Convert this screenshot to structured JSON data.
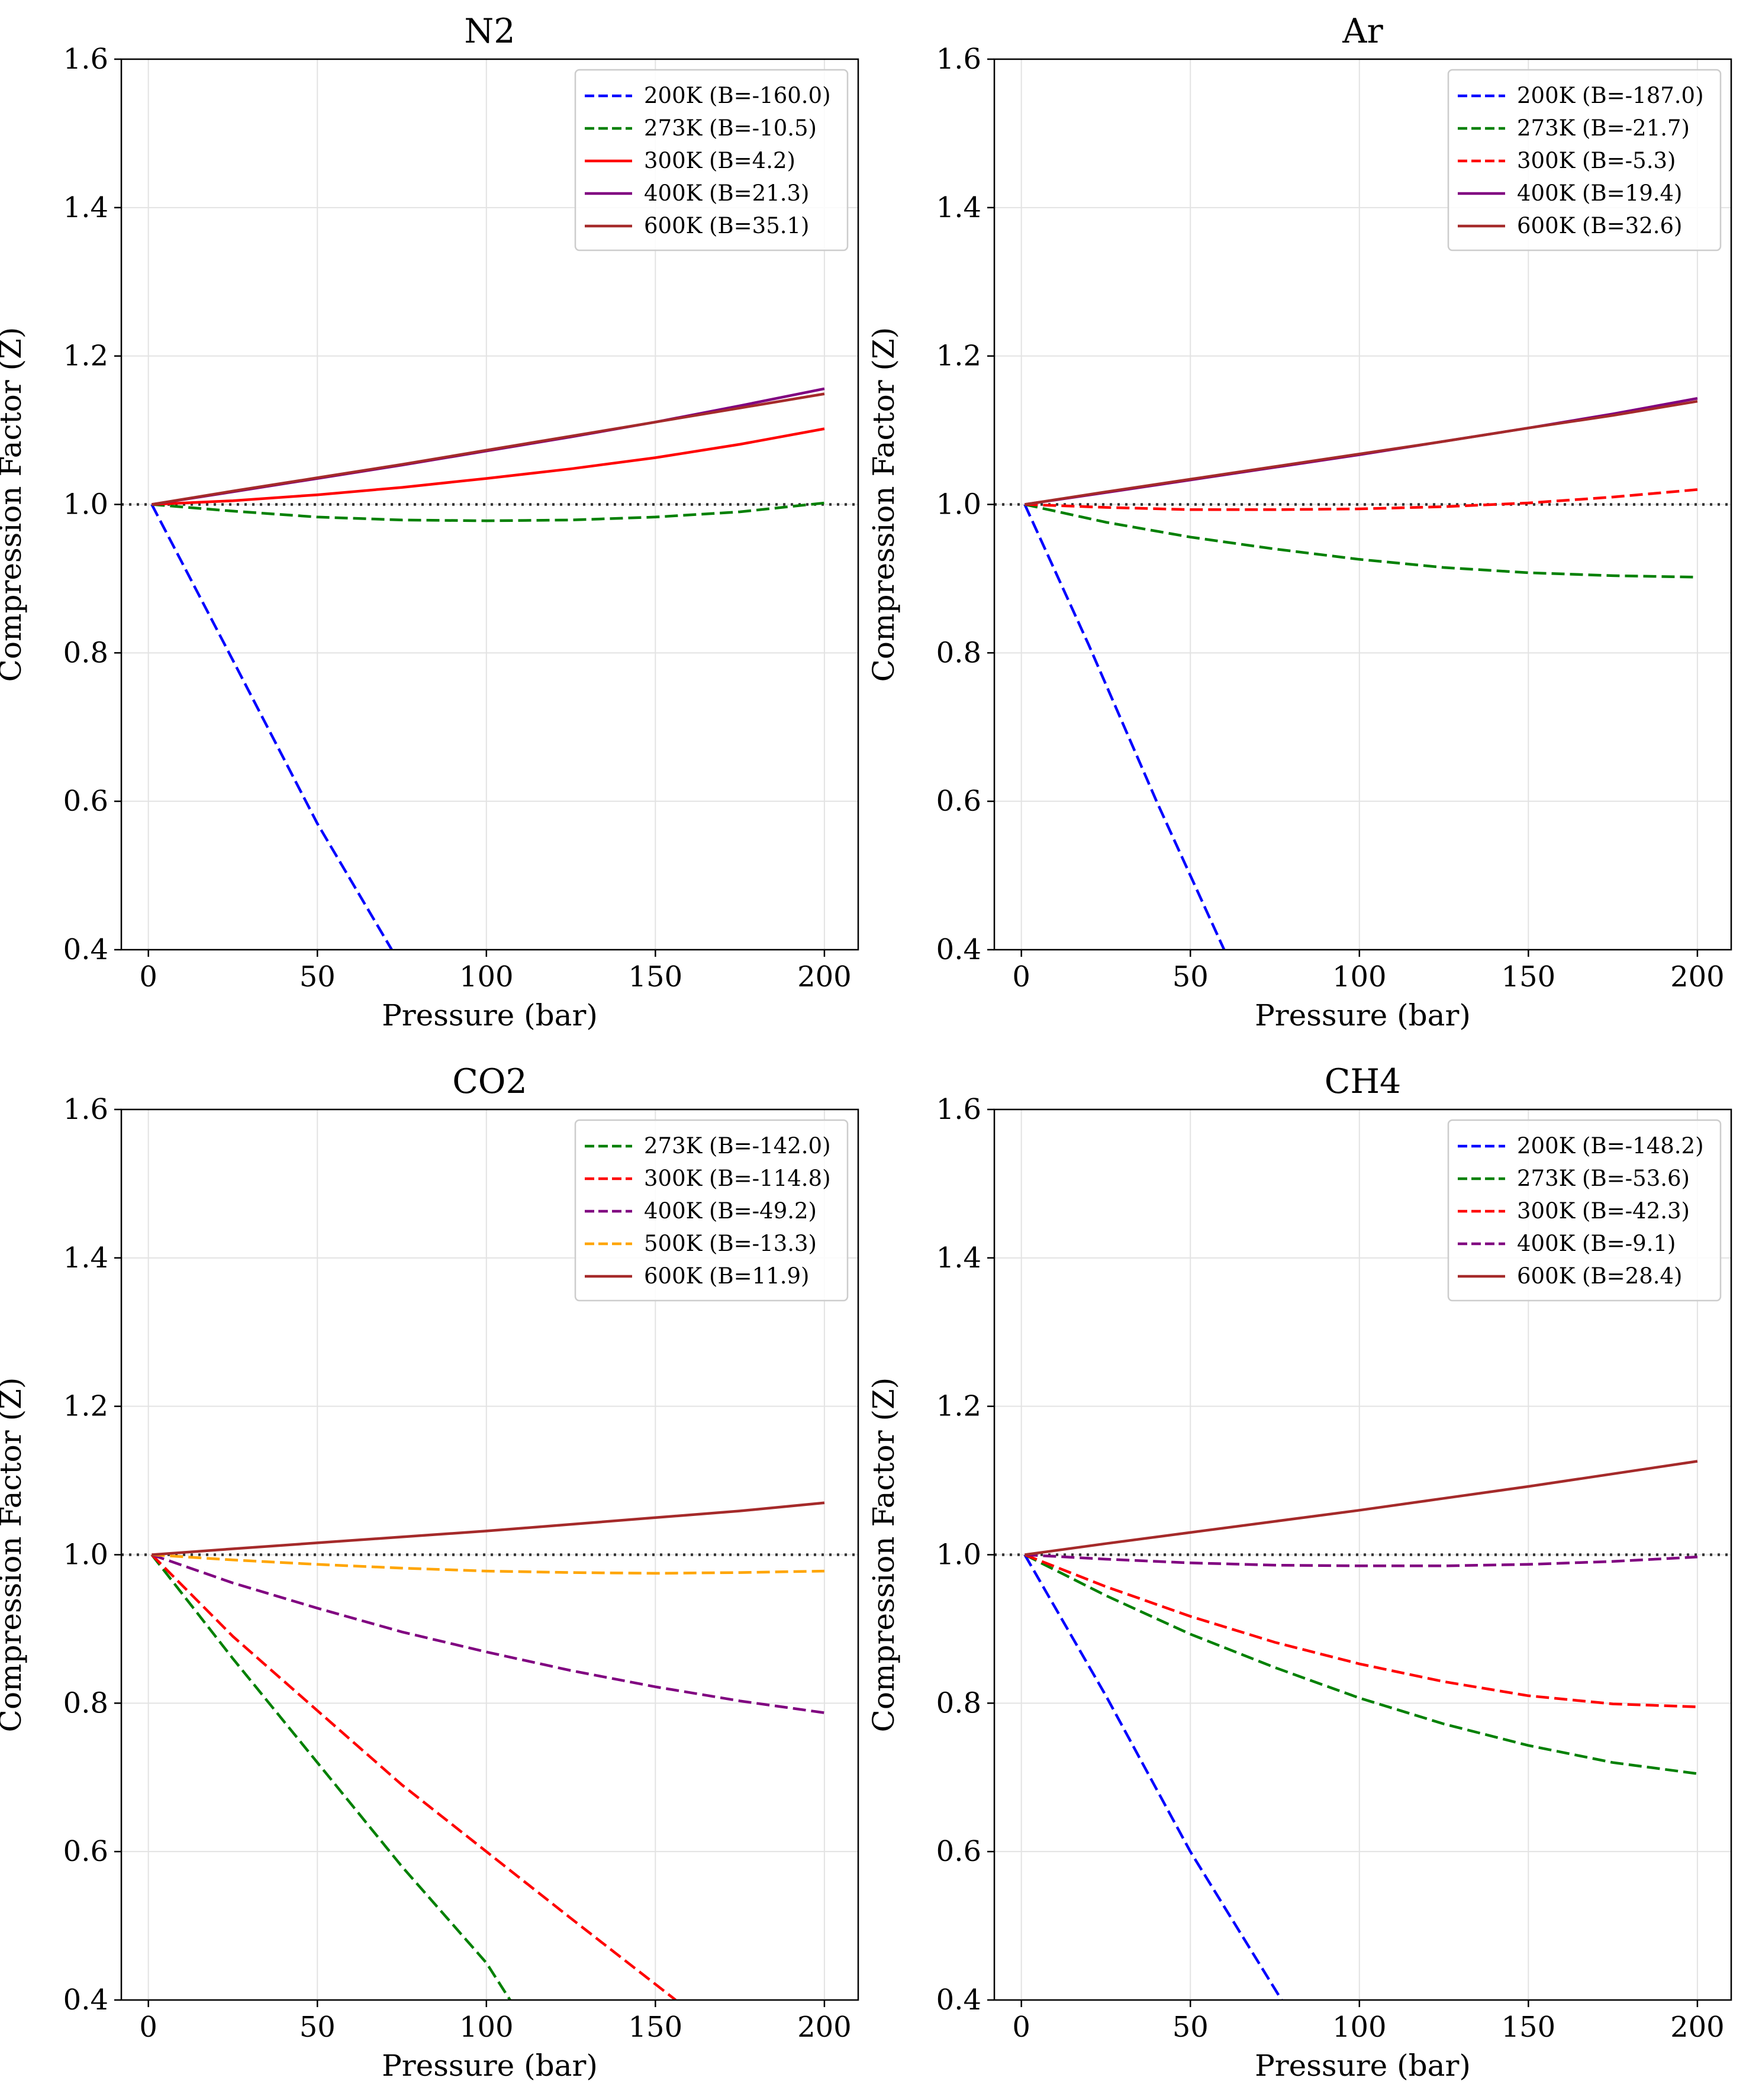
{
  "chart_data": [
    {
      "type": "line",
      "title": "N2",
      "xlabel": "Pressure (bar)",
      "ylabel": "Compression Factor (Z)",
      "xlim": [
        -8,
        210
      ],
      "ylim": [
        0.4,
        1.6
      ],
      "xticks": [
        0,
        50,
        100,
        150,
        200
      ],
      "yticks": [
        0.4,
        0.6,
        0.8,
        1.0,
        1.2,
        1.4,
        1.6
      ],
      "xtick_labels": [
        "0",
        "50",
        "100",
        "150",
        "200"
      ],
      "ytick_labels": [
        "0.4",
        "0.6",
        "0.8",
        "1.0",
        "1.2",
        "1.4",
        "1.6"
      ],
      "grid": true,
      "legend_position": "top-right",
      "reference_line": {
        "y": 1.0,
        "style": "dotted",
        "color": "#333333"
      },
      "series": [
        {
          "name": "200K (B=-160.0)",
          "color": "#0000ff",
          "dash": "dashed",
          "x": [
            1,
            25,
            50,
            72
          ],
          "values": [
            1.0,
            0.79,
            0.57,
            0.4
          ]
        },
        {
          "name": "273K (B=-10.5)",
          "color": "#008000",
          "dash": "dashed",
          "x": [
            1,
            25,
            50,
            75,
            100,
            125,
            150,
            175,
            200
          ],
          "values": [
            1.0,
            0.991,
            0.983,
            0.979,
            0.978,
            0.979,
            0.983,
            0.99,
            1.002
          ]
        },
        {
          "name": "300K (B=4.2)",
          "color": "#ff0000",
          "dash": "solid",
          "x": [
            1,
            25,
            50,
            75,
            100,
            125,
            150,
            175,
            200
          ],
          "values": [
            1.0,
            1.005,
            1.013,
            1.023,
            1.035,
            1.048,
            1.063,
            1.081,
            1.102
          ]
        },
        {
          "name": "400K (B=21.3)",
          "color": "#800080",
          "dash": "solid",
          "x": [
            1,
            25,
            50,
            75,
            100,
            125,
            150,
            175,
            200
          ],
          "values": [
            1.0,
            1.017,
            1.035,
            1.053,
            1.072,
            1.091,
            1.111,
            1.133,
            1.156
          ]
        },
        {
          "name": "600K (B=35.1)",
          "color": "#a52a2a",
          "dash": "solid",
          "x": [
            1,
            25,
            50,
            75,
            100,
            125,
            150,
            175,
            200
          ],
          "values": [
            1.0,
            1.018,
            1.036,
            1.054,
            1.073,
            1.092,
            1.111,
            1.13,
            1.149
          ]
        }
      ]
    },
    {
      "type": "line",
      "title": "Ar",
      "xlabel": "Pressure (bar)",
      "ylabel": "Compression Factor (Z)",
      "xlim": [
        -8,
        210
      ],
      "ylim": [
        0.4,
        1.6
      ],
      "xticks": [
        0,
        50,
        100,
        150,
        200
      ],
      "yticks": [
        0.4,
        0.6,
        0.8,
        1.0,
        1.2,
        1.4,
        1.6
      ],
      "xtick_labels": [
        "0",
        "50",
        "100",
        "150",
        "200"
      ],
      "ytick_labels": [
        "0.4",
        "0.6",
        "0.8",
        "1.0",
        "1.2",
        "1.4",
        "1.6"
      ],
      "grid": true,
      "legend_position": "top-right",
      "reference_line": {
        "y": 1.0,
        "style": "dotted",
        "color": "#333333"
      },
      "series": [
        {
          "name": "200K (B=-187.0)",
          "color": "#0000ff",
          "dash": "dashed",
          "x": [
            1,
            20,
            40,
            60
          ],
          "values": [
            1.0,
            0.81,
            0.6,
            0.4
          ]
        },
        {
          "name": "273K (B=-21.7)",
          "color": "#008000",
          "dash": "dashed",
          "x": [
            1,
            25,
            50,
            75,
            100,
            125,
            150,
            175,
            200
          ],
          "values": [
            1.0,
            0.976,
            0.956,
            0.94,
            0.926,
            0.915,
            0.908,
            0.904,
            0.902
          ]
        },
        {
          "name": "300K (B=-5.3)",
          "color": "#ff0000",
          "dash": "dashed",
          "x": [
            1,
            25,
            50,
            75,
            100,
            125,
            150,
            175,
            200
          ],
          "values": [
            1.0,
            0.996,
            0.993,
            0.993,
            0.994,
            0.997,
            1.002,
            1.01,
            1.02
          ]
        },
        {
          "name": "400K (B=19.4)",
          "color": "#800080",
          "dash": "solid",
          "x": [
            1,
            25,
            50,
            75,
            100,
            125,
            150,
            175,
            200
          ],
          "values": [
            1.0,
            1.016,
            1.033,
            1.05,
            1.067,
            1.085,
            1.103,
            1.122,
            1.143
          ]
        },
        {
          "name": "600K (B=32.6)",
          "color": "#a52a2a",
          "dash": "solid",
          "x": [
            1,
            25,
            50,
            75,
            100,
            125,
            150,
            175,
            200
          ],
          "values": [
            1.0,
            1.017,
            1.034,
            1.051,
            1.068,
            1.085,
            1.103,
            1.12,
            1.139
          ]
        }
      ]
    },
    {
      "type": "line",
      "title": "CO2",
      "xlabel": "Pressure (bar)",
      "ylabel": "Compression Factor (Z)",
      "xlim": [
        -8,
        210
      ],
      "ylim": [
        0.4,
        1.6
      ],
      "xticks": [
        0,
        50,
        100,
        150,
        200
      ],
      "yticks": [
        0.4,
        0.6,
        0.8,
        1.0,
        1.2,
        1.4,
        1.6
      ],
      "xtick_labels": [
        "0",
        "50",
        "100",
        "150",
        "200"
      ],
      "ytick_labels": [
        "0.4",
        "0.6",
        "0.8",
        "1.0",
        "1.2",
        "1.4",
        "1.6"
      ],
      "grid": true,
      "legend_position": "top-right",
      "reference_line": {
        "y": 1.0,
        "style": "dotted",
        "color": "#333333"
      },
      "series": [
        {
          "name": "273K (B=-142.0)",
          "color": "#008000",
          "dash": "dashed",
          "x": [
            1,
            25,
            50,
            75,
            100,
            107
          ],
          "values": [
            1.0,
            0.86,
            0.72,
            0.58,
            0.45,
            0.4
          ]
        },
        {
          "name": "300K (B=-114.8)",
          "color": "#ff0000",
          "dash": "dashed",
          "x": [
            1,
            25,
            50,
            75,
            100,
            125,
            156
          ],
          "values": [
            1.0,
            0.89,
            0.79,
            0.69,
            0.6,
            0.51,
            0.4
          ]
        },
        {
          "name": "400K (B=-49.2)",
          "color": "#800080",
          "dash": "dashed",
          "x": [
            1,
            25,
            50,
            75,
            100,
            125,
            150,
            175,
            200
          ],
          "values": [
            1.0,
            0.962,
            0.928,
            0.896,
            0.869,
            0.844,
            0.822,
            0.803,
            0.787
          ]
        },
        {
          "name": "500K (B=-13.3)",
          "color": "#ffa500",
          "dash": "dashed",
          "x": [
            1,
            25,
            50,
            75,
            100,
            125,
            150,
            175,
            200
          ],
          "values": [
            1.0,
            0.993,
            0.987,
            0.982,
            0.978,
            0.976,
            0.975,
            0.976,
            0.978
          ]
        },
        {
          "name": "600K (B=11.9)",
          "color": "#a52a2a",
          "dash": "solid",
          "x": [
            1,
            25,
            50,
            75,
            100,
            125,
            150,
            175,
            200
          ],
          "values": [
            1.0,
            1.008,
            1.016,
            1.024,
            1.032,
            1.041,
            1.05,
            1.059,
            1.07
          ]
        }
      ]
    },
    {
      "type": "line",
      "title": "CH4",
      "xlabel": "Pressure (bar)",
      "ylabel": "Compression Factor (Z)",
      "xlim": [
        -8,
        210
      ],
      "ylim": [
        0.4,
        1.6
      ],
      "xticks": [
        0,
        50,
        100,
        150,
        200
      ],
      "yticks": [
        0.4,
        0.6,
        0.8,
        1.0,
        1.2,
        1.4,
        1.6
      ],
      "xtick_labels": [
        "0",
        "50",
        "100",
        "150",
        "200"
      ],
      "ytick_labels": [
        "0.4",
        "0.6",
        "0.8",
        "1.0",
        "1.2",
        "1.4",
        "1.6"
      ],
      "grid": true,
      "legend_position": "top-right",
      "reference_line": {
        "y": 1.0,
        "style": "dotted",
        "color": "#333333"
      },
      "series": [
        {
          "name": "200K (B=-148.2)",
          "color": "#0000ff",
          "dash": "dashed",
          "x": [
            1,
            25,
            50,
            77
          ],
          "values": [
            1.0,
            0.81,
            0.6,
            0.4
          ]
        },
        {
          "name": "273K (B=-53.6)",
          "color": "#008000",
          "dash": "dashed",
          "x": [
            1,
            25,
            50,
            75,
            100,
            125,
            150,
            175,
            200
          ],
          "values": [
            1.0,
            0.945,
            0.893,
            0.848,
            0.807,
            0.772,
            0.743,
            0.72,
            0.705
          ]
        },
        {
          "name": "300K (B=-42.3)",
          "color": "#ff0000",
          "dash": "dashed",
          "x": [
            1,
            25,
            50,
            75,
            100,
            125,
            150,
            175,
            200
          ],
          "values": [
            1.0,
            0.957,
            0.917,
            0.882,
            0.853,
            0.829,
            0.81,
            0.799,
            0.795
          ]
        },
        {
          "name": "400K (B=-9.1)",
          "color": "#800080",
          "dash": "dashed",
          "x": [
            1,
            25,
            50,
            75,
            100,
            125,
            150,
            175,
            200
          ],
          "values": [
            1.0,
            0.994,
            0.989,
            0.986,
            0.985,
            0.985,
            0.987,
            0.991,
            0.997
          ]
        },
        {
          "name": "600K (B=28.4)",
          "color": "#a52a2a",
          "dash": "solid",
          "x": [
            1,
            25,
            50,
            75,
            100,
            125,
            150,
            175,
            200
          ],
          "values": [
            1.0,
            1.015,
            1.03,
            1.045,
            1.06,
            1.076,
            1.092,
            1.109,
            1.126
          ]
        }
      ]
    }
  ]
}
